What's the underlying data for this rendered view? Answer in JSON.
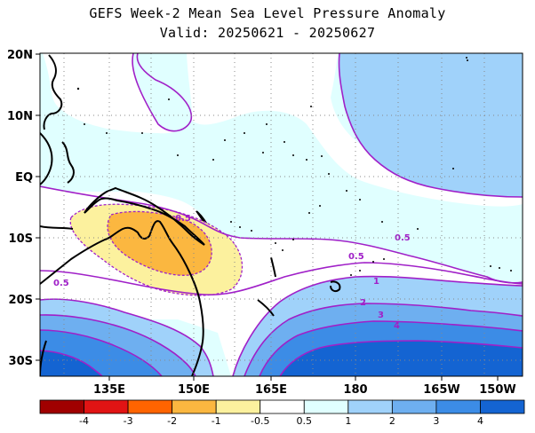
{
  "title": "GEFS Week-2 Mean Sea Level Pressure Anomaly",
  "subtitle": "Valid: 20250621 - 20250627",
  "map": {
    "lat_labels": [
      "20N",
      "10N",
      "EQ",
      "10S",
      "20S",
      "30S"
    ],
    "lon_labels": [
      "135E",
      "150E",
      "165E",
      "180",
      "165W",
      "150W"
    ],
    "contour_labels": {
      "neg": "-0.5",
      "west": "0.5",
      "mid": "0.5",
      "east": "0.5",
      "c1": "1",
      "c2": "2",
      "c3": "3",
      "c4": "4"
    },
    "colors": {
      "negative_strong": "#fbb740",
      "negative_light": "#fcf19e",
      "positive_0_5": "#e0ffff",
      "positive_1": "#a0d2fa",
      "positive_2": "#6eaff0",
      "positive_3": "#3c8ce6",
      "positive_4": "#1464d2",
      "contour_positive": "#a020c8",
      "contour_negative": "#a020c8"
    }
  },
  "colorbar": {
    "colors": [
      "#a00000",
      "#e11414",
      "#ff6400",
      "#fbb740",
      "#fcf19e",
      "#ffffff",
      "#e0ffff",
      "#a0d2fa",
      "#6eaff0",
      "#3c8ce6",
      "#1464d2"
    ],
    "labels": [
      "-4",
      "-3",
      "-2",
      "-1",
      "-0.5",
      "0.5",
      "1",
      "2",
      "3",
      "4"
    ]
  }
}
